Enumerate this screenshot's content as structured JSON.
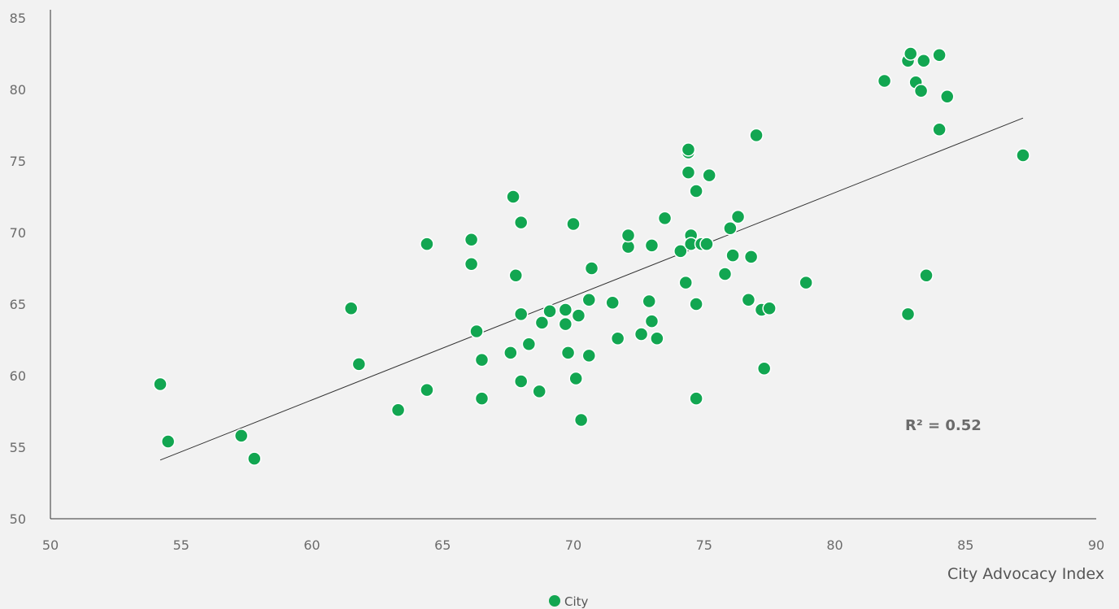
{
  "chart_data": {
    "type": "scatter",
    "title": "",
    "xlabel": "City Advocacy Index",
    "ylabel": "",
    "xlim": [
      50,
      90
    ],
    "ylim": [
      50,
      85
    ],
    "x_ticks": [
      "50",
      "55",
      "60",
      "65",
      "70",
      "75",
      "80",
      "85",
      "90"
    ],
    "y_ticks": [
      "50",
      "55",
      "60",
      "65",
      "70",
      "75",
      "80",
      "85"
    ],
    "grid": false,
    "legend_position": "bottom",
    "colors": {
      "points": "#12a651",
      "trendline": "#333333",
      "axis": "#333333",
      "text": "#6b6b6b"
    },
    "series": [
      {
        "name": "City",
        "points": [
          [
            54.2,
            59.4
          ],
          [
            54.5,
            55.4
          ],
          [
            57.3,
            55.8
          ],
          [
            57.8,
            54.2
          ],
          [
            61.5,
            64.7
          ],
          [
            61.8,
            60.8
          ],
          [
            63.3,
            57.6
          ],
          [
            64.4,
            69.2
          ],
          [
            64.4,
            59.0
          ],
          [
            66.1,
            69.5
          ],
          [
            66.1,
            67.8
          ],
          [
            66.3,
            63.1
          ],
          [
            66.5,
            61.1
          ],
          [
            66.5,
            58.4
          ],
          [
            67.6,
            61.6
          ],
          [
            67.7,
            72.5
          ],
          [
            67.8,
            67.0
          ],
          [
            68.0,
            70.7
          ],
          [
            68.0,
            64.3
          ],
          [
            68.0,
            59.6
          ],
          [
            68.3,
            62.2
          ],
          [
            68.7,
            58.9
          ],
          [
            68.8,
            63.7
          ],
          [
            69.1,
            64.5
          ],
          [
            69.7,
            64.6
          ],
          [
            69.7,
            63.6
          ],
          [
            69.8,
            61.6
          ],
          [
            70.0,
            70.6
          ],
          [
            70.1,
            59.8
          ],
          [
            70.2,
            64.2
          ],
          [
            70.3,
            56.9
          ],
          [
            70.6,
            65.3
          ],
          [
            70.6,
            61.4
          ],
          [
            70.7,
            67.5
          ],
          [
            71.5,
            65.1
          ],
          [
            71.7,
            62.6
          ],
          [
            72.1,
            69.0
          ],
          [
            72.1,
            69.8
          ],
          [
            72.6,
            62.9
          ],
          [
            72.9,
            65.2
          ],
          [
            73.0,
            69.1
          ],
          [
            73.0,
            63.8
          ],
          [
            73.2,
            62.6
          ],
          [
            73.5,
            71.0
          ],
          [
            74.1,
            68.7
          ],
          [
            74.3,
            66.5
          ],
          [
            74.4,
            75.6
          ],
          [
            74.4,
            75.8
          ],
          [
            74.4,
            74.2
          ],
          [
            74.5,
            69.8
          ],
          [
            74.5,
            69.2
          ],
          [
            74.7,
            72.9
          ],
          [
            74.7,
            65.0
          ],
          [
            74.7,
            58.4
          ],
          [
            74.9,
            69.2
          ],
          [
            75.1,
            69.2
          ],
          [
            75.2,
            74.0
          ],
          [
            75.8,
            67.1
          ],
          [
            76.0,
            70.3
          ],
          [
            76.1,
            68.4
          ],
          [
            76.3,
            71.1
          ],
          [
            76.7,
            65.3
          ],
          [
            76.8,
            68.3
          ],
          [
            77.0,
            76.8
          ],
          [
            77.2,
            64.6
          ],
          [
            77.3,
            60.5
          ],
          [
            77.5,
            64.7
          ],
          [
            78.9,
            66.5
          ],
          [
            81.9,
            80.6
          ],
          [
            82.8,
            82.0
          ],
          [
            82.8,
            64.3
          ],
          [
            82.9,
            82.5
          ],
          [
            83.1,
            80.5
          ],
          [
            83.3,
            79.9
          ],
          [
            83.4,
            82.0
          ],
          [
            83.5,
            67.0
          ],
          [
            84.0,
            82.4
          ],
          [
            84.0,
            77.2
          ],
          [
            84.3,
            79.5
          ],
          [
            87.2,
            75.4
          ]
        ]
      }
    ],
    "trendline": {
      "x": [
        54.2,
        87.2
      ],
      "y": [
        54.1,
        78.0
      ]
    },
    "annotations": [
      {
        "text": "R² = 0.52",
        "x": 84.0,
        "y": 55.6
      }
    ],
    "legend": [
      {
        "label": "City"
      }
    ]
  }
}
